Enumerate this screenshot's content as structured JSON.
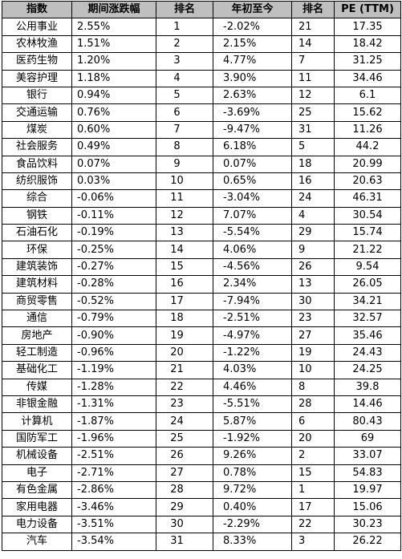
{
  "table": {
    "headers": [
      "指数",
      "期间涨跌幅",
      "排名",
      "年初至今",
      "排名",
      "PE (TTM)"
    ],
    "rows": [
      [
        "公用事业",
        "2.55%",
        "1",
        "-2.02%",
        "21",
        "17.35"
      ],
      [
        "农林牧渔",
        "1.51%",
        "2",
        "2.15%",
        "14",
        "18.42"
      ],
      [
        "医药生物",
        "1.20%",
        "3",
        "4.77%",
        "7",
        "31.25"
      ],
      [
        "美容护理",
        "1.18%",
        "4",
        "3.90%",
        "11",
        "34.46"
      ],
      [
        "银行",
        "0.94%",
        "5",
        "2.63%",
        "12",
        "6.1"
      ],
      [
        "交通运输",
        "0.76%",
        "6",
        "-3.69%",
        "25",
        "15.62"
      ],
      [
        "煤炭",
        "0.60%",
        "7",
        "-9.47%",
        "31",
        "11.26"
      ],
      [
        "社会服务",
        "0.49%",
        "8",
        "6.18%",
        "5",
        "44.2"
      ],
      [
        "食品饮料",
        "0.07%",
        "9",
        "0.07%",
        "18",
        "20.99"
      ],
      [
        "纺织服饰",
        "0.03%",
        "10",
        "0.65%",
        "16",
        "20.63"
      ],
      [
        "综合",
        "-0.06%",
        "11",
        "-3.04%",
        "24",
        "46.31"
      ],
      [
        "钢铁",
        "-0.11%",
        "12",
        "7.07%",
        "4",
        "30.54"
      ],
      [
        "石油石化",
        "-0.19%",
        "13",
        "-5.54%",
        "29",
        "15.74"
      ],
      [
        "环保",
        "-0.25%",
        "14",
        "4.06%",
        "9",
        "21.22"
      ],
      [
        "建筑装饰",
        "-0.27%",
        "15",
        "-4.56%",
        "26",
        "9.54"
      ],
      [
        "建筑材料",
        "-0.28%",
        "16",
        "2.34%",
        "13",
        "26.05"
      ],
      [
        "商贸零售",
        "-0.52%",
        "17",
        "-7.94%",
        "30",
        "34.21"
      ],
      [
        "通信",
        "-0.79%",
        "18",
        "-2.51%",
        "23",
        "32.57"
      ],
      [
        "房地产",
        "-0.90%",
        "19",
        "-4.97%",
        "27",
        "35.46"
      ],
      [
        "轻工制造",
        "-0.96%",
        "20",
        "-1.22%",
        "19",
        "24.43"
      ],
      [
        "基础化工",
        "-1.19%",
        "21",
        "4.03%",
        "10",
        "24.25"
      ],
      [
        "传媒",
        "-1.28%",
        "22",
        "4.46%",
        "8",
        "39.8"
      ],
      [
        "非银金融",
        "-1.31%",
        "23",
        "-5.51%",
        "28",
        "14.46"
      ],
      [
        "计算机",
        "-1.87%",
        "24",
        "5.87%",
        "6",
        "80.43"
      ],
      [
        "国防军工",
        "-1.96%",
        "25",
        "-1.92%",
        "20",
        "69"
      ],
      [
        "机械设备",
        "-2.51%",
        "26",
        "9.26%",
        "2",
        "33.07"
      ],
      [
        "电子",
        "-2.71%",
        "27",
        "0.78%",
        "15",
        "54.83"
      ],
      [
        "有色金属",
        "-2.86%",
        "28",
        "9.72%",
        "1",
        "19.97"
      ],
      [
        "家用电器",
        "-3.46%",
        "29",
        "0.40%",
        "17",
        "15.06"
      ],
      [
        "电力设备",
        "-3.51%",
        "30",
        "-2.29%",
        "22",
        "30.23"
      ],
      [
        "汽车",
        "-3.54%",
        "31",
        "8.33%",
        "3",
        "26.22"
      ]
    ]
  }
}
